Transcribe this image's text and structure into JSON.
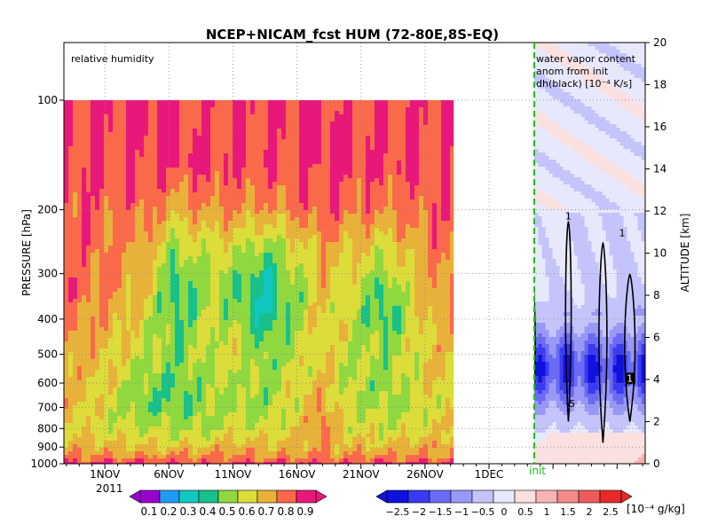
{
  "chart_data": {
    "type": "heatmap",
    "title": "NCEP+NICAM_fcst HUM (72-80E,8S-EQ)",
    "ylabel_left": "PRESSURE [hPa]",
    "ylabel_right": "ALTITUDE [km]",
    "panel_left_label": "relative humidity",
    "panel_right_label_lines": [
      "water vapor content",
      "anom from init",
      "dh(black) [10⁻⁴ K/s]"
    ],
    "init_label": "init",
    "x_tick_labels": [
      "1NOV",
      "6NOV",
      "11NOV",
      "16NOV",
      "21NOV",
      "26NOV",
      "1DEC"
    ],
    "x_year_label": "2011",
    "x_range_days": [
      -3.2,
      42.2
    ],
    "init_day": 27.2,
    "pressure_ticks": [
      100,
      200,
      300,
      400,
      500,
      600,
      700,
      800,
      900,
      1000
    ],
    "pressure_range_hPa": [
      100,
      1000
    ],
    "altitude_ticks": [
      0,
      2,
      4,
      6,
      8,
      10,
      12,
      14,
      16,
      18,
      20
    ],
    "altitude_range_km": [
      0,
      20
    ],
    "rh_colorbar": {
      "labels": [
        "0.1",
        "0.2",
        "0.3",
        "0.4",
        "0.5",
        "0.6",
        "0.7",
        "0.8",
        "0.9"
      ],
      "colors": [
        "#9a00cc",
        "#1e9cf0",
        "#10c8c0",
        "#18c08a",
        "#90d840",
        "#dcdc3a",
        "#e8b23a",
        "#fa6a4a",
        "#e8187a"
      ]
    },
    "anom_colorbar": {
      "labels": [
        "−2.5",
        "−2",
        "−1.5",
        "−1",
        "−0.5",
        "0",
        "0.5",
        "1",
        "1.5",
        "2",
        "2.5"
      ],
      "unit": "[10⁻⁴ g/kg]",
      "colors": [
        "#1010e0",
        "#3a3af0",
        "#6a6af4",
        "#9898f6",
        "#c4c4fa",
        "#e8e8fc",
        "#fbe0e0",
        "#f7b4b4",
        "#f28a8a",
        "#ed5c5c",
        "#e62a2a"
      ]
    },
    "heating_contour_labels": [
      "5",
      "1",
      "1",
      "1",
      "1",
      "5",
      "1",
      "1",
      "1",
      "1",
      "5"
    ],
    "rh_profile_note": "RH field: moist near surface (~0.85), drier mid levels (0.4-0.6) with minima around 300-400 hPa on 6NOV, 12NOV and 22NOV, saturated above ~150 hPa",
    "rh_grid": {
      "pressure_levels": [
        1000,
        950,
        900,
        850,
        800,
        750,
        700,
        650,
        600,
        550,
        500,
        450,
        400,
        350,
        300,
        250,
        200,
        150,
        100
      ],
      "sample_days": [
        -3,
        0,
        3,
        5.5,
        8,
        10.5,
        12.5,
        15,
        17,
        19,
        22,
        24,
        26
      ],
      "values": [
        [
          0.9,
          0.9,
          0.9,
          0.9,
          0.9,
          0.9,
          0.9,
          0.9,
          0.9,
          0.9,
          0.9,
          0.9,
          0.9
        ],
        [
          0.82,
          0.8,
          0.8,
          0.8,
          0.8,
          0.8,
          0.8,
          0.8,
          0.8,
          0.8,
          0.8,
          0.8,
          0.8
        ],
        [
          0.75,
          0.72,
          0.72,
          0.7,
          0.72,
          0.75,
          0.72,
          0.75,
          0.78,
          0.72,
          0.72,
          0.75,
          0.78
        ],
        [
          0.72,
          0.68,
          0.66,
          0.64,
          0.65,
          0.7,
          0.68,
          0.72,
          0.78,
          0.7,
          0.66,
          0.7,
          0.72
        ],
        [
          0.7,
          0.65,
          0.6,
          0.58,
          0.6,
          0.64,
          0.62,
          0.68,
          0.82,
          0.66,
          0.62,
          0.65,
          0.7
        ],
        [
          0.72,
          0.64,
          0.55,
          0.55,
          0.58,
          0.62,
          0.6,
          0.66,
          0.84,
          0.64,
          0.6,
          0.62,
          0.68
        ],
        [
          0.74,
          0.66,
          0.52,
          0.5,
          0.56,
          0.6,
          0.56,
          0.66,
          0.8,
          0.62,
          0.58,
          0.6,
          0.66
        ],
        [
          0.74,
          0.66,
          0.52,
          0.48,
          0.55,
          0.6,
          0.55,
          0.68,
          0.76,
          0.62,
          0.56,
          0.62,
          0.68
        ],
        [
          0.74,
          0.68,
          0.55,
          0.5,
          0.58,
          0.6,
          0.55,
          0.66,
          0.72,
          0.6,
          0.55,
          0.62,
          0.7
        ],
        [
          0.76,
          0.7,
          0.58,
          0.52,
          0.6,
          0.62,
          0.54,
          0.64,
          0.7,
          0.6,
          0.56,
          0.64,
          0.72
        ],
        [
          0.78,
          0.72,
          0.62,
          0.55,
          0.62,
          0.64,
          0.52,
          0.62,
          0.68,
          0.62,
          0.55,
          0.64,
          0.72
        ],
        [
          0.8,
          0.74,
          0.64,
          0.52,
          0.62,
          0.62,
          0.48,
          0.6,
          0.68,
          0.64,
          0.52,
          0.64,
          0.74
        ],
        [
          0.82,
          0.78,
          0.66,
          0.48,
          0.6,
          0.56,
          0.42,
          0.56,
          0.7,
          0.62,
          0.45,
          0.64,
          0.76
        ],
        [
          0.84,
          0.8,
          0.7,
          0.45,
          0.58,
          0.52,
          0.38,
          0.55,
          0.72,
          0.62,
          0.48,
          0.66,
          0.78
        ],
        [
          0.86,
          0.82,
          0.74,
          0.48,
          0.6,
          0.56,
          0.42,
          0.58,
          0.74,
          0.66,
          0.55,
          0.7,
          0.8
        ],
        [
          0.86,
          0.84,
          0.78,
          0.58,
          0.66,
          0.64,
          0.56,
          0.66,
          0.78,
          0.72,
          0.66,
          0.76,
          0.84
        ],
        [
          0.88,
          0.86,
          0.84,
          0.74,
          0.8,
          0.8,
          0.76,
          0.82,
          0.88,
          0.84,
          0.82,
          0.84,
          0.88
        ],
        [
          0.9,
          0.9,
          0.9,
          0.9,
          0.9,
          0.9,
          0.9,
          0.9,
          0.9,
          0.9,
          0.9,
          0.9,
          0.9
        ],
        [
          0.9,
          0.9,
          0.9,
          0.9,
          0.9,
          0.9,
          0.9,
          0.9,
          0.9,
          0.9,
          0.9,
          0.9,
          0.9
        ]
      ]
    },
    "anom_profile_note": "forecast after init: negative water vapor anomaly (down to about -2.5) between ~2 and 7 km, weak positive near the surface and above 12 km"
  }
}
